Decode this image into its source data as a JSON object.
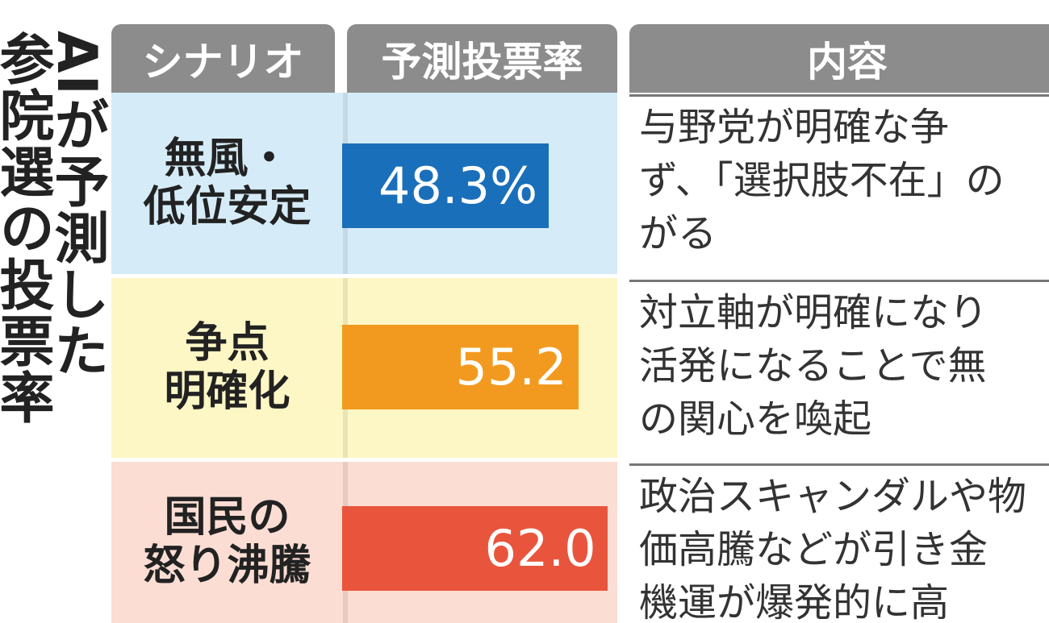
{
  "chart_data": {
    "type": "bar",
    "title": [
      "AIが予測した",
      "参院選の投票率"
    ],
    "headers": [
      "シナリオ",
      "予測投票率",
      "内容"
    ],
    "categories": [
      [
        "無風・",
        "低位安定"
      ],
      [
        "争点",
        "明確化"
      ],
      [
        "国民の",
        "怒り沸騰"
      ]
    ],
    "values": [
      48.3,
      55.2,
      62.0
    ],
    "value_labels": [
      "48.3%",
      "55.2",
      "62.0"
    ],
    "colors": [
      "#1a6fba",
      "#f29a1f",
      "#e9553c"
    ],
    "row_colors": [
      "#d5ecf8",
      "#fdf7c6",
      "#fbddd3"
    ],
    "descriptions": [
      [
        "与野党が明確な争",
        "ず、「選択肢不在」の",
        "がる"
      ],
      [
        "対立軸が明確になり",
        "活発になることで無",
        "の関心を喚起"
      ],
      [
        "政治スキャンダルや物",
        "価高騰などが引き金",
        "機運が爆発的に高"
      ]
    ]
  }
}
